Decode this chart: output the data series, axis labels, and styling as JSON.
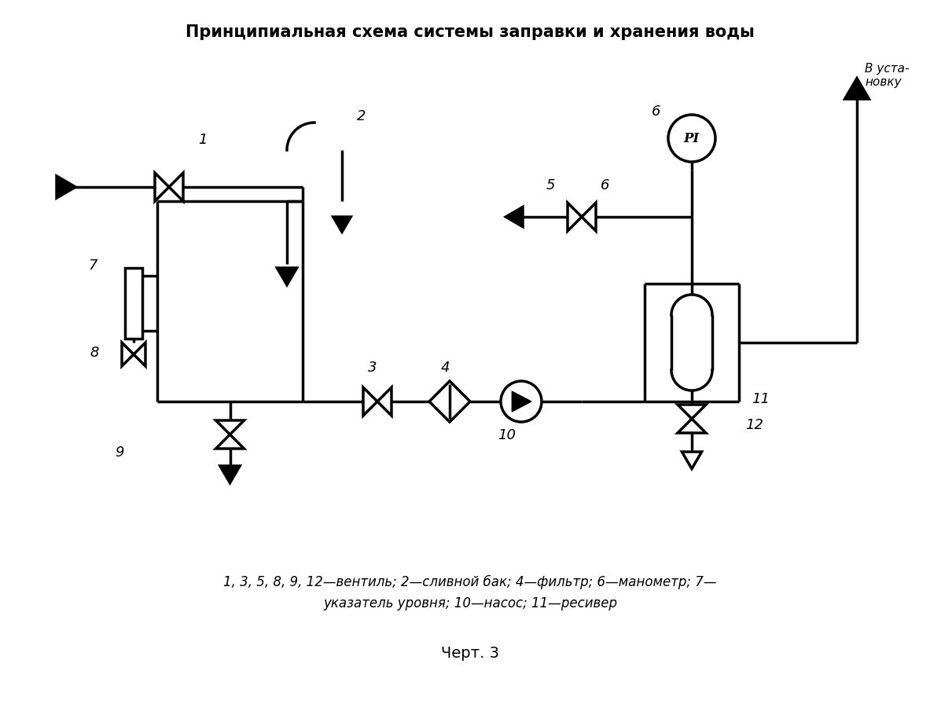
{
  "title": "Принципиальная схема системы заправки и хранения воды",
  "caption": "Черт. 3",
  "legend_line1": "1, 3, 5, 8, 9, 12—вентиль; 2—сливной бак; 4—фильтр; 6—манометр; 7—",
  "legend_line2": "указатель уровня; 10—насос; 11—ресивер",
  "bg_color": "#ffffff",
  "line_color": "#000000",
  "lw": 2.5
}
